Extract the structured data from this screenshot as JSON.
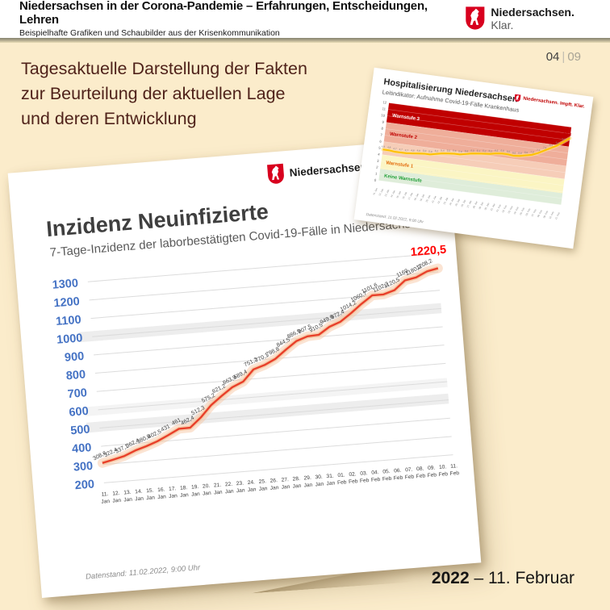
{
  "header": {
    "title": "Niedersachsen in der Corona-Pandemie – Erfahrungen, Entscheidungen, Lehren",
    "subtitle": "Beispielhafte Grafiken und Schaubilder aus der Krisenkommunikation",
    "brand_name": "Niedersachsen.",
    "brand_suffix": " Klar."
  },
  "page": {
    "current": "04",
    "separator": "|",
    "total": "09"
  },
  "lead_text": {
    "line1": "Tagesaktuelle Darstellung der Fakten",
    "line2": "zur Beurteilung der aktuellen Lage",
    "line3": "und deren Entwicklung"
  },
  "footer": {
    "year": "2022",
    "rest": " – 11. Februar"
  },
  "colors": {
    "background": "#fbeccb",
    "crest_red": "#d8001e",
    "lead_text": "#4f221a"
  },
  "chart_data": [
    {
      "type": "line",
      "title": "Inzidenz Neuinfizierte",
      "subtitle": "7-Tage-Inzidenz der laborbestätigten Covid-19-Fälle in Niedersachsen",
      "brand": "Niedersachsen.",
      "footnote": "Datenstand: 11.02.2022, 9:00 Uhr",
      "xlabel": "",
      "ylabel": "",
      "ylim": [
        200,
        1300
      ],
      "yticks": [
        200,
        300,
        400,
        500,
        600,
        700,
        800,
        900,
        1000,
        1100,
        1200,
        1300
      ],
      "grid": true,
      "legend": "none",
      "axis_color": "#4472c4",
      "line_color": "#e8402a",
      "glow_color": "#f6c49d",
      "highlight_color": "#ff0000",
      "highlight_bands": [
        {
          "range": [
            975,
            1030
          ],
          "color": "#ededed"
        },
        {
          "range": [
            480,
            535
          ],
          "color": "#ededed"
        },
        {
          "range": [
            570,
            620
          ],
          "color": "#f4f4f4"
        }
      ],
      "categories": [
        "11. Jan",
        "12. Jan",
        "13. Jan",
        "14. Jan",
        "15. Jan",
        "16. Jan",
        "17. Jan",
        "18. Jan",
        "19. Jan",
        "20. Jan",
        "21. Jan",
        "22. Jan",
        "23. Jan",
        "24. Jan",
        "25. Jan",
        "26. Jan",
        "27. Jan",
        "28. Jan",
        "29. Jan",
        "30. Jan",
        "31. Jan",
        "01. Feb",
        "02. Feb",
        "03. Feb",
        "04. Feb",
        "05. Feb",
        "06. Feb",
        "07. Feb",
        "08. Feb",
        "09. Feb",
        "10. Feb",
        "11. Feb"
      ],
      "values": [
        308.6,
        322.4,
        337.1,
        362.4,
        380.8,
        402.5,
        431,
        461,
        462.4,
        512.3,
        575.2,
        621.2,
        663.9,
        689.4,
        751.2,
        770.1,
        798.8,
        844.5,
        886.9,
        907.5,
        910.5,
        949.9,
        972.4,
        1014.2,
        1060.7,
        1101.6,
        1102.2,
        1120.5,
        1169,
        1180.2,
        1208.2,
        1220.5
      ],
      "labels": [
        "308,6",
        "322,4",
        "337,1",
        "362,4",
        "380,8",
        "402,5",
        "431",
        "461",
        "462,4",
        "512,3",
        "575,2",
        "621,2",
        "663,9",
        "689,4",
        "751,2",
        "770,1",
        "798,8",
        "844,5",
        "886,9",
        "907,5",
        "910,5",
        "949,9",
        "972,4",
        "1014,2",
        "1060,7",
        "1101,6",
        "1102,2",
        "1120,5",
        "1169",
        "1180,2",
        "1208,2",
        "1220,5"
      ]
    },
    {
      "type": "line",
      "title": "Hospitalisierung Niedersachsen",
      "subtitle": "Leitindikator: Aufnahme Covid-19-Fälle Krankenhaus",
      "brand": "Niedersachsen. Impft. Klar.",
      "footnote": "Datenstand: 11.02.2022, 9:00 Uhr",
      "ylim": [
        0,
        12
      ],
      "yticks": [
        0,
        1,
        2,
        3,
        4,
        5,
        6,
        7,
        8,
        9,
        10,
        11,
        12
      ],
      "line_color": "#ffc000",
      "glow_color": "#ffe08a",
      "highlight_color": "#c00000",
      "bands": [
        {
          "from": 9,
          "to": 12,
          "color": "#c00000",
          "label": "Warnstufe 3",
          "label_color": "#ffffff",
          "label_at": 10.2
        },
        {
          "from": 6,
          "to": 9,
          "color": "#efae9a",
          "label": "Warnstufe 2",
          "label_color": "#c00000",
          "label_at": 7.35
        },
        {
          "from": 4,
          "to": 6,
          "color": "#f6cdb8",
          "label": "",
          "label_color": "#c00000",
          "label_at": 5
        },
        {
          "from": 1.8,
          "to": 4,
          "color": "#fbf5c4",
          "label": "Warnstufe 1",
          "label_color": "#e36c0a",
          "label_at": 2.9
        },
        {
          "from": 0,
          "to": 1.8,
          "color": "#dfedda",
          "label": "Keine Warnstufe",
          "label_color": "#21a038",
          "label_at": 0.85
        }
      ],
      "categories": [
        "11. Jan",
        "12. Jan",
        "13. Jan",
        "14. Jan",
        "15. Jan",
        "16. Jan",
        "17. Jan",
        "18. Jan",
        "19. Jan",
        "20. Jan",
        "21. Jan",
        "22. Jan",
        "23. Jan",
        "24. Jan",
        "25. Jan",
        "26. Jan",
        "27. Jan",
        "28. Jan",
        "29. Jan",
        "30. Jan",
        "31. Jan",
        "01. Feb",
        "02. Feb",
        "03. Feb",
        "04. Feb",
        "05. Feb",
        "06. Feb",
        "07. Feb",
        "08. Feb",
        "09. Feb",
        "10. Feb",
        "11. Feb"
      ],
      "values": [
        4.8,
        4.8,
        4.7,
        4.7,
        4.7,
        4.8,
        4.9,
        5.0,
        5.0,
        5.2,
        5.4,
        5.5,
        5.6,
        5.6,
        5.8,
        6.0,
        6.1,
        6.2,
        6.3,
        6.5,
        6.6,
        6.6,
        6.5,
        6.6,
        6.8,
        7.0,
        7.4,
        7.9,
        8.4,
        8.9,
        9.6,
        10.3
      ],
      "labels": [
        "4,8",
        "4,8",
        "4,7",
        "4,7",
        "4,7",
        "4,8",
        "4,9",
        "5,0",
        "5,0",
        "5,2",
        "5,4",
        "5,5",
        "5,6",
        "5,6",
        "5,8",
        "6,0",
        "6,1",
        "6,2",
        "6,3",
        "6,5",
        "6,6",
        "6,6",
        "6,5",
        "6,6",
        "6,8",
        "7,0",
        "7,4",
        "7,9",
        "8,4",
        "8,9",
        "9,6",
        "10,3"
      ]
    }
  ]
}
